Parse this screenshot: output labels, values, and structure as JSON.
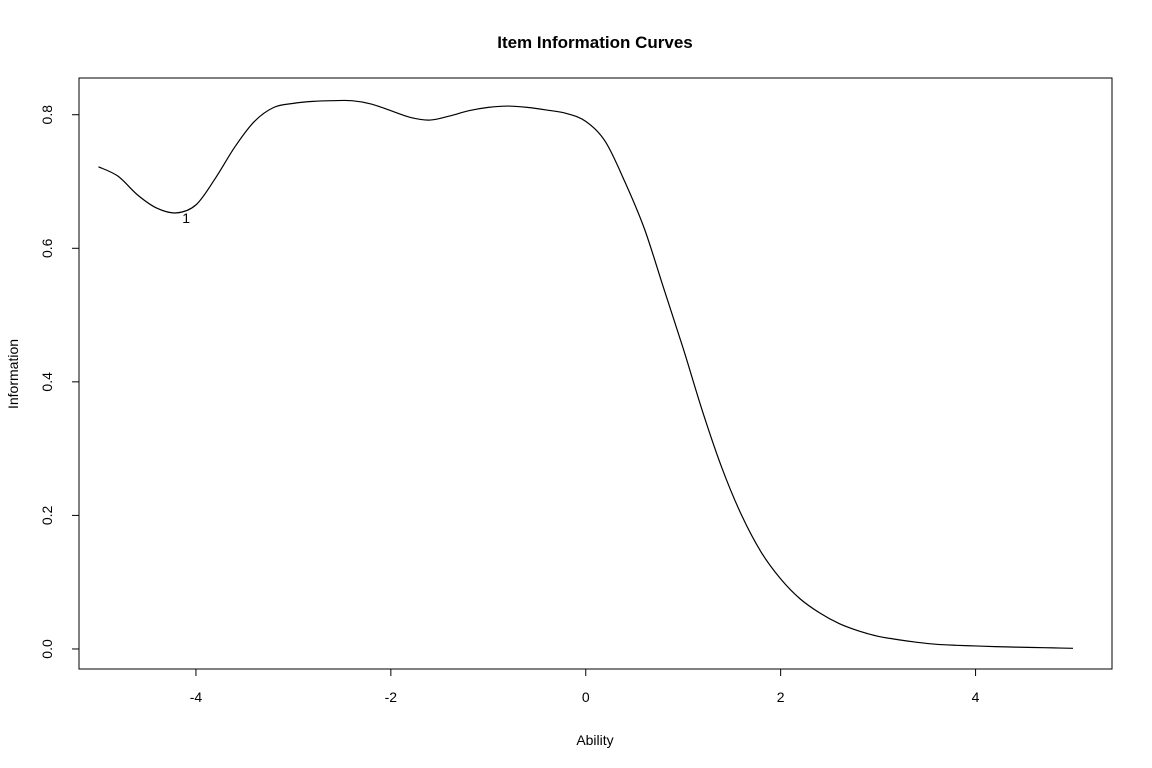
{
  "chart_data": {
    "type": "line",
    "title": "Item Information Curves",
    "xlabel": "Ability",
    "ylabel": "Information",
    "xlim": [
      -5.2,
      5.4
    ],
    "ylim": [
      -0.03,
      0.855
    ],
    "xticks": [
      -4,
      -2,
      0,
      2,
      4
    ],
    "yticks": [
      0.0,
      0.2,
      0.4,
      0.6,
      0.8
    ],
    "xtick_labels": [
      "-4",
      "-2",
      "0",
      "2",
      "4"
    ],
    "ytick_labels": [
      "0.0",
      "0.2",
      "0.4",
      "0.6",
      "0.8"
    ],
    "grid": false,
    "legend": "none",
    "series": [
      {
        "label": "1",
        "label_at": [
          -4.1,
          0.645
        ],
        "x": [
          -5.0,
          -4.8,
          -4.6,
          -4.4,
          -4.2,
          -4.0,
          -3.8,
          -3.6,
          -3.4,
          -3.2,
          -3.0,
          -2.8,
          -2.6,
          -2.4,
          -2.2,
          -2.0,
          -1.8,
          -1.6,
          -1.4,
          -1.2,
          -1.0,
          -0.8,
          -0.6,
          -0.4,
          -0.2,
          0.0,
          0.2,
          0.4,
          0.6,
          0.8,
          1.0,
          1.2,
          1.4,
          1.6,
          1.8,
          2.0,
          2.2,
          2.4,
          2.6,
          2.8,
          3.0,
          3.2,
          3.4,
          3.6,
          3.8,
          4.0,
          4.2,
          4.4,
          4.6,
          4.8,
          5.0
        ],
        "y": [
          0.722,
          0.708,
          0.68,
          0.66,
          0.653,
          0.665,
          0.705,
          0.752,
          0.79,
          0.811,
          0.817,
          0.82,
          0.821,
          0.821,
          0.816,
          0.806,
          0.796,
          0.792,
          0.798,
          0.806,
          0.811,
          0.813,
          0.811,
          0.807,
          0.802,
          0.79,
          0.76,
          0.7,
          0.63,
          0.54,
          0.45,
          0.355,
          0.27,
          0.2,
          0.145,
          0.105,
          0.075,
          0.054,
          0.038,
          0.027,
          0.019,
          0.014,
          0.01,
          0.007,
          0.0055,
          0.0045,
          0.0035,
          0.0028,
          0.0022,
          0.0016,
          0.001
        ]
      }
    ]
  }
}
